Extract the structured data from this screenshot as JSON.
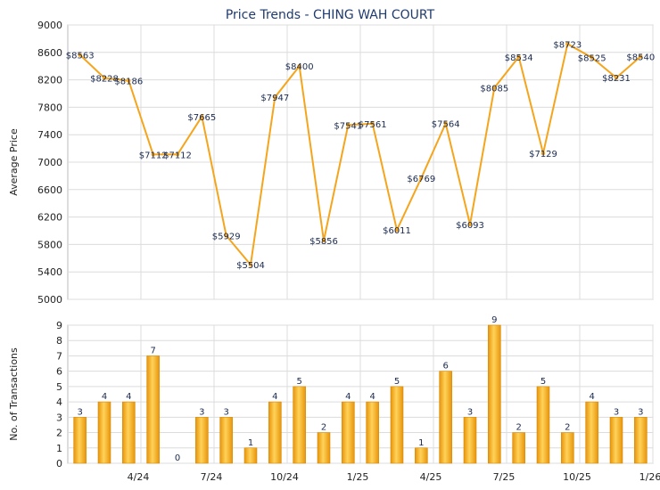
{
  "title": "Price Trends - CHING WAH COURT",
  "chart_data": [
    {
      "type": "line",
      "ylabel": "Average Price",
      "ylim": [
        5000,
        9000
      ],
      "yticks": [
        5000,
        5400,
        5800,
        6200,
        6600,
        7000,
        7400,
        7800,
        8200,
        8600,
        9000
      ],
      "x_tick_labels": [
        "4/24",
        "7/24",
        "10/24",
        "1/25",
        "4/25",
        "7/25",
        "10/25",
        "1/26"
      ],
      "grid": true,
      "color": "#f5a51c",
      "points": [
        {
          "value": 8563,
          "label": "$8563"
        },
        {
          "value": 8228,
          "label": "$8228"
        },
        {
          "value": 8186,
          "label": "$8186"
        },
        {
          "value": 7112,
          "label": "$7112"
        },
        {
          "value": 7112,
          "label": "$7112"
        },
        {
          "value": 7665,
          "label": "$7665"
        },
        {
          "value": 5929,
          "label": "$5929"
        },
        {
          "value": 5504,
          "label": "$5504"
        },
        {
          "value": 7947,
          "label": "$7947"
        },
        {
          "value": 8400,
          "label": "$8400"
        },
        {
          "value": 5856,
          "label": "$5856"
        },
        {
          "value": 7541,
          "label": "$7541"
        },
        {
          "value": 7561,
          "label": "$7561"
        },
        {
          "value": 6011,
          "label": "$6011"
        },
        {
          "value": 6769,
          "label": "$6769"
        },
        {
          "value": 7564,
          "label": "$7564"
        },
        {
          "value": 6093,
          "label": "$6093"
        },
        {
          "value": 8085,
          "label": "$8085"
        },
        {
          "value": 8534,
          "label": "$8534"
        },
        {
          "value": 7129,
          "label": "$7129"
        },
        {
          "value": 8723,
          "label": "$8723"
        },
        {
          "value": 8525,
          "label": "$8525"
        },
        {
          "value": 8231,
          "label": "$8231"
        },
        {
          "value": 8540,
          "label": "$8540"
        }
      ]
    },
    {
      "type": "bar",
      "ylabel": "No. of Transactions",
      "ylim": [
        0,
        9
      ],
      "yticks": [
        0,
        1,
        2,
        3,
        4,
        5,
        6,
        7,
        8,
        9
      ],
      "x_tick_labels": [
        "4/24",
        "7/24",
        "10/24",
        "1/25",
        "4/25",
        "7/25",
        "10/25",
        "1/26"
      ],
      "grid": true,
      "color": "#f5a51c",
      "values": [
        3,
        4,
        4,
        7,
        0,
        3,
        3,
        1,
        4,
        5,
        2,
        4,
        4,
        5,
        1,
        6,
        3,
        9,
        2,
        5,
        2,
        4,
        3,
        3
      ]
    }
  ]
}
